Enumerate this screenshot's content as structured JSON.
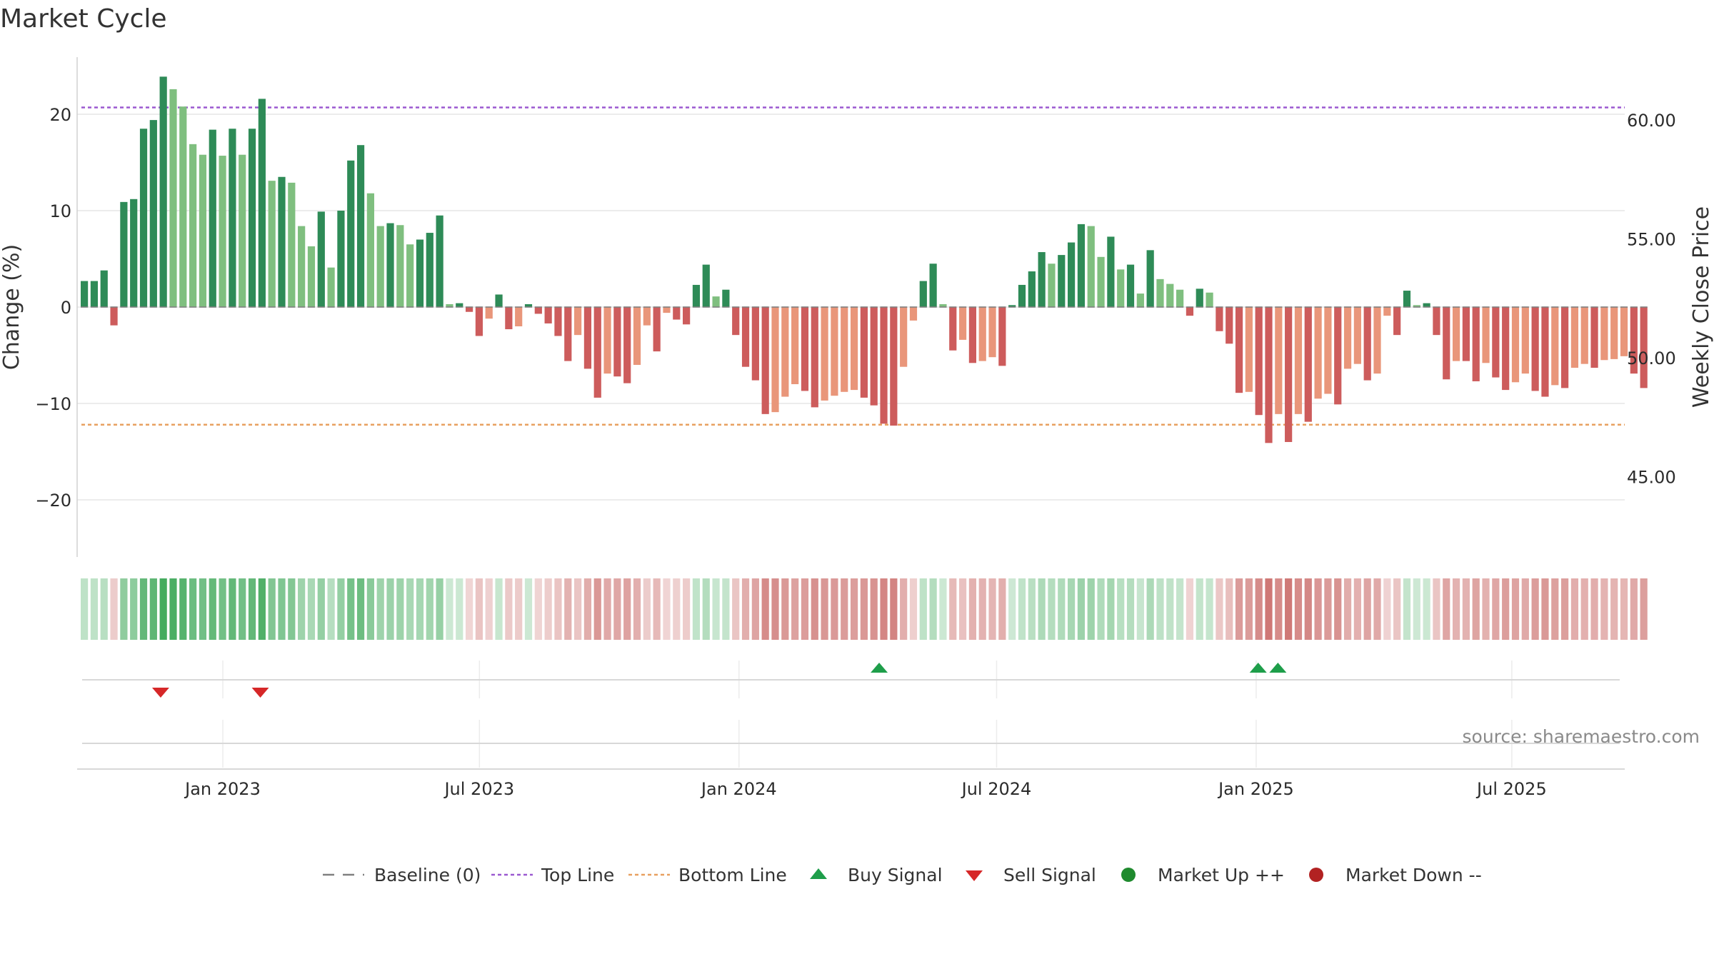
{
  "chart_data": {
    "type": "bar",
    "title": "Market Cycle",
    "ylabel": "Change (%)",
    "ylabel_right": "Weekly Close Price",
    "ylim": [
      -26,
      26
    ],
    "ylim_right": [
      42,
      63
    ],
    "yticks": [
      20,
      10,
      0,
      -10,
      -20
    ],
    "yticks_labels": [
      "20",
      "10",
      "0",
      "−10",
      "−20"
    ],
    "yticks_right": [
      60,
      55,
      50,
      45
    ],
    "yticks_right_labels": [
      "60.00",
      "55.00",
      "50.00",
      "45.00"
    ],
    "x_start_index": -14.7,
    "x_ticks": [
      {
        "label": "Jan 2023",
        "index": 0
      },
      {
        "label": "Jul 2023",
        "index": 26
      },
      {
        "label": "Jan 2024",
        "index": 52.3
      },
      {
        "label": "Jul 2024",
        "index": 78.4
      },
      {
        "label": "Jan 2025",
        "index": 104.7
      },
      {
        "label": "Jul 2025",
        "index": 130.6
      }
    ],
    "top_line": 20.7,
    "bottom_line": -12.2,
    "baseline": 0,
    "values": [
      2.7,
      2.7,
      3.8,
      -1.9,
      10.9,
      11.2,
      18.5,
      19.4,
      23.9,
      22.6,
      20.8,
      16.9,
      15.8,
      18.4,
      15.7,
      18.5,
      15.8,
      18.5,
      21.6,
      13.1,
      13.5,
      12.9,
      8.4,
      6.3,
      9.9,
      4.1,
      10.0,
      15.2,
      16.8,
      11.8,
      8.4,
      8.7,
      8.5,
      6.5,
      7.0,
      7.7,
      9.5,
      0.3,
      0.4,
      -0.5,
      -3.0,
      -1.2,
      1.3,
      -2.3,
      -2.0,
      0.3,
      -0.7,
      -1.7,
      -3.0,
      -5.6,
      -2.9,
      -6.4,
      -9.4,
      -6.9,
      -7.2,
      -7.9,
      -6.0,
      -1.9,
      -4.6,
      -0.6,
      -1.3,
      -1.8,
      2.3,
      4.4,
      1.1,
      1.8,
      -2.9,
      -6.2,
      -7.6,
      -11.1,
      -10.9,
      -9.3,
      -8.0,
      -8.7,
      -10.4,
      -9.7,
      -9.2,
      -8.8,
      -8.6,
      -9.4,
      -10.2,
      -12.1,
      -12.3,
      -6.2,
      -1.4,
      2.7,
      4.5,
      0.3,
      -4.5,
      -3.4,
      -5.8,
      -5.6,
      -5.2,
      -6.1,
      0.2,
      2.3,
      3.7,
      5.7,
      4.5,
      5.4,
      6.7,
      8.6,
      8.4,
      5.2,
      7.3,
      3.9,
      4.4,
      1.4,
      5.9,
      2.9,
      2.4,
      1.8,
      -0.9,
      1.9,
      1.5,
      -2.5,
      -3.8,
      -8.9,
      -8.8,
      -11.2,
      -14.1,
      -11.1,
      -14.0,
      -11.1,
      -11.9,
      -9.5,
      -9.0,
      -10.1,
      -6.4,
      -5.9,
      -7.6,
      -6.9,
      -0.9,
      -2.9,
      1.7,
      0.2,
      0.4,
      -2.9,
      -7.5,
      -5.6,
      -5.6,
      -7.7,
      -5.8,
      -7.3,
      -8.6,
      -7.8,
      -6.9,
      -8.7,
      -9.3,
      -8.1,
      -8.4,
      -6.3,
      -5.9,
      -6.3,
      -5.5,
      -5.4,
      -5.1,
      -6.9,
      -8.4
    ],
    "sell_signals_index": [
      -6.3,
      3.8
    ],
    "buy_signals_index": [
      66.5,
      104.9,
      106.9
    ],
    "legend": {
      "items": [
        {
          "name": "legend-baseline",
          "label": "Baseline (0)",
          "marker": "dash-gray"
        },
        {
          "name": "legend-top-line",
          "label": "Top Line",
          "marker": "dot-purple"
        },
        {
          "name": "legend-bottom-line",
          "label": "Bottom Line",
          "marker": "dot-orange"
        },
        {
          "name": "legend-buy-signal",
          "label": "Buy Signal",
          "marker": "triangle-up-green"
        },
        {
          "name": "legend-sell-signal",
          "label": "Sell Signal",
          "marker": "triangle-down-red"
        },
        {
          "name": "legend-market-up",
          "label": "Market Up ++",
          "marker": "circle-green"
        },
        {
          "name": "legend-market-down",
          "label": "Market Down --",
          "marker": "circle-red"
        }
      ],
      "position": "bottom-center"
    },
    "source_note": "source: sharemaestro.com",
    "colors": {
      "up_strong": "#2e8b57",
      "up_weak": "#7fbf7f",
      "down_strong": "#cd5c5c",
      "down_weak": "#e9967a",
      "top_line": "#9b59d0",
      "bottom_line": "#e8a060",
      "buy": "#1e9e4a",
      "sell": "#d62728",
      "market_up": "#1f8a2e",
      "market_down": "#b22222",
      "baseline": "#808080"
    }
  }
}
